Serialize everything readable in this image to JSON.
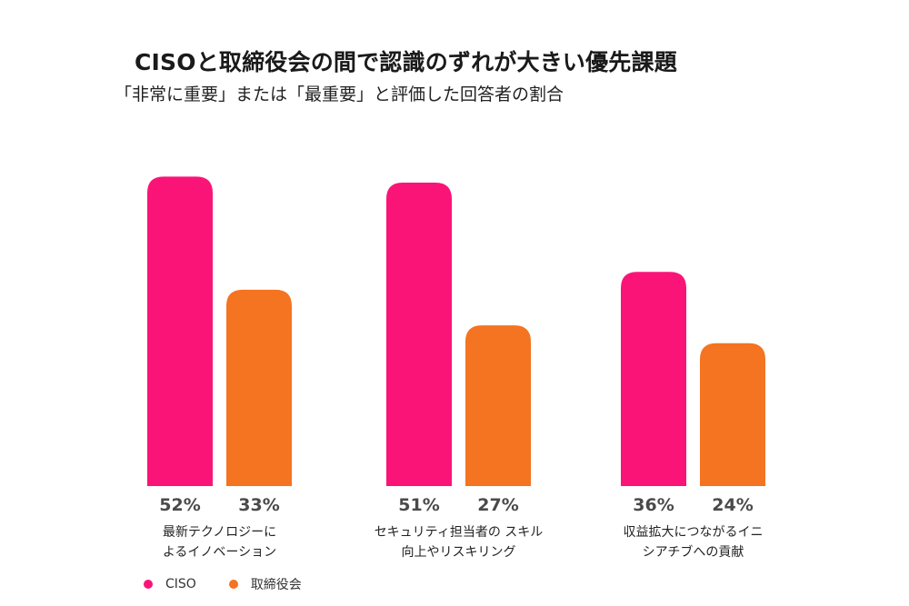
{
  "chart_data": {
    "type": "bar",
    "title": "CISOと取締役会の間で認識のずれが大きい優先課題",
    "subtitle": "「非常に重要」または「最重要」と評価した回答者の割合",
    "categories": [
      [
        "最新テクノロジーに",
        "よるイノベーション"
      ],
      [
        "セキュリティ担当者の スキル",
        "向上やリスキリング"
      ],
      [
        "収益拡大につながるイニ",
        "シアチブへの貢献"
      ]
    ],
    "series": [
      {
        "name": "CISO",
        "values": [
          52,
          51,
          36
        ],
        "labels": [
          "52%",
          "51%",
          "36%"
        ],
        "color": "#fa1478"
      },
      {
        "name": "取締役会",
        "values": [
          33,
          27,
          24
        ],
        "labels": [
          "33%",
          "27%",
          "24%"
        ],
        "color": "#f47421"
      }
    ],
    "unit": "%",
    "xlabel": "",
    "ylabel": "",
    "grid": false,
    "legend": "bottom-left"
  }
}
